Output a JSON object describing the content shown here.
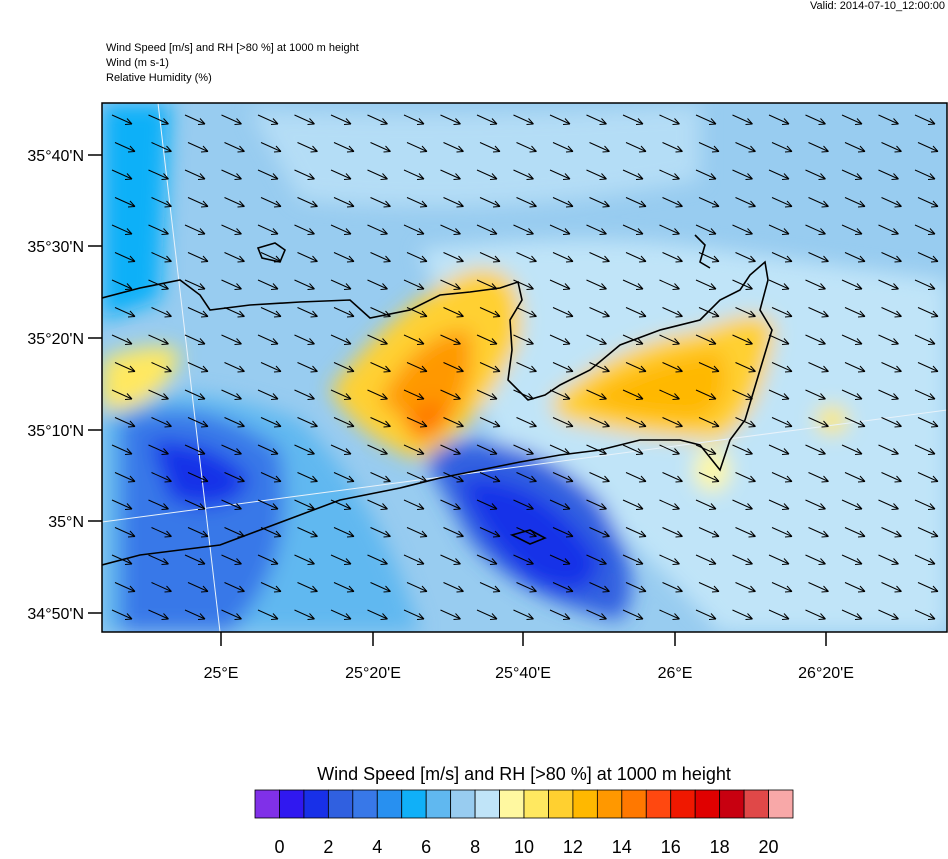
{
  "header": {
    "valid": "Valid: 2014-07-10_12:00:00",
    "lines": [
      "Wind Speed [m/s] and RH [>80 %] at 1000 m height",
      "Wind   (m s-1)",
      "Relative Humidity   (%)"
    ]
  },
  "map": {
    "lat_labels": [
      "35°40'N",
      "35°30'N",
      "35°20'N",
      "35°10'N",
      "35°N",
      "34°50'N"
    ],
    "lon_labels": [
      "25°E",
      "25°20'E",
      "25°40'E",
      "26°E",
      "26°20'E"
    ]
  },
  "colorbar": {
    "title": "Wind Speed [m/s] and RH [>80 %] at 1000 m height",
    "colors": [
      "#8030e8",
      "#3018f0",
      "#1830e8",
      "#3060e0",
      "#3878e8",
      "#2890f0",
      "#10b0f8",
      "#60b8f0",
      "#98ccf0",
      "#c0e4f8",
      "#fff8a0",
      "#ffe860",
      "#ffd030",
      "#ffb800",
      "#ff9800",
      "#ff7800",
      "#ff4810",
      "#f01800",
      "#e00000",
      "#c80010",
      "#e04848",
      "#f8a8a8"
    ],
    "labels": [
      0,
      2,
      4,
      6,
      8,
      10,
      12,
      14,
      16,
      18,
      20
    ]
  }
}
